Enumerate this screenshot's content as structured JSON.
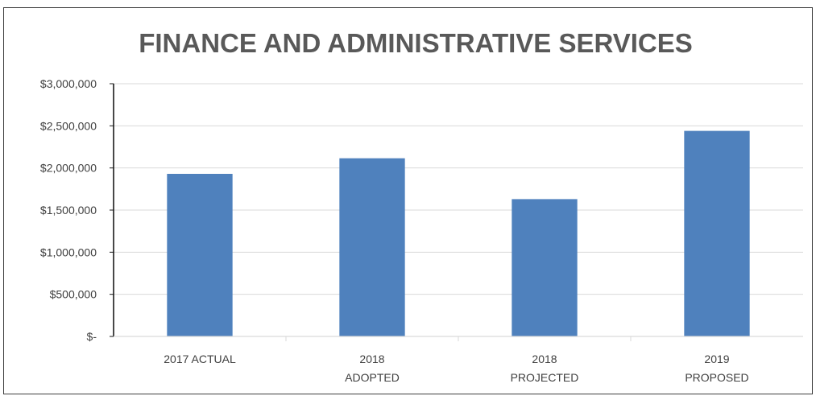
{
  "chart_data": {
    "type": "bar",
    "title": "FINANCE AND ADMINISTRATIVE SERVICES",
    "xlabel": "",
    "ylabel": "",
    "categories": [
      [
        "2017 ACTUAL"
      ],
      [
        "2018",
        "ADOPTED"
      ],
      [
        "2018",
        "PROJECTED"
      ],
      [
        "2019",
        "PROPOSED"
      ]
    ],
    "values": [
      1930000,
      2115000,
      1630000,
      2440000
    ],
    "ylim": [
      0,
      3000000
    ],
    "yticks": [
      0,
      500000,
      1000000,
      1500000,
      2000000,
      2500000,
      3000000
    ],
    "ytick_labels": [
      "$-",
      "$500,000",
      "$1,000,000",
      "$1,500,000",
      "$2,000,000",
      "$2,500,000",
      "$3,000,000"
    ],
    "grid": true,
    "legend": "none",
    "colors": {
      "bar": "#4f81bd",
      "grid": "#d9d9d9",
      "axis": "#1a1a1a",
      "title": "#595959",
      "text": "#404040"
    }
  }
}
